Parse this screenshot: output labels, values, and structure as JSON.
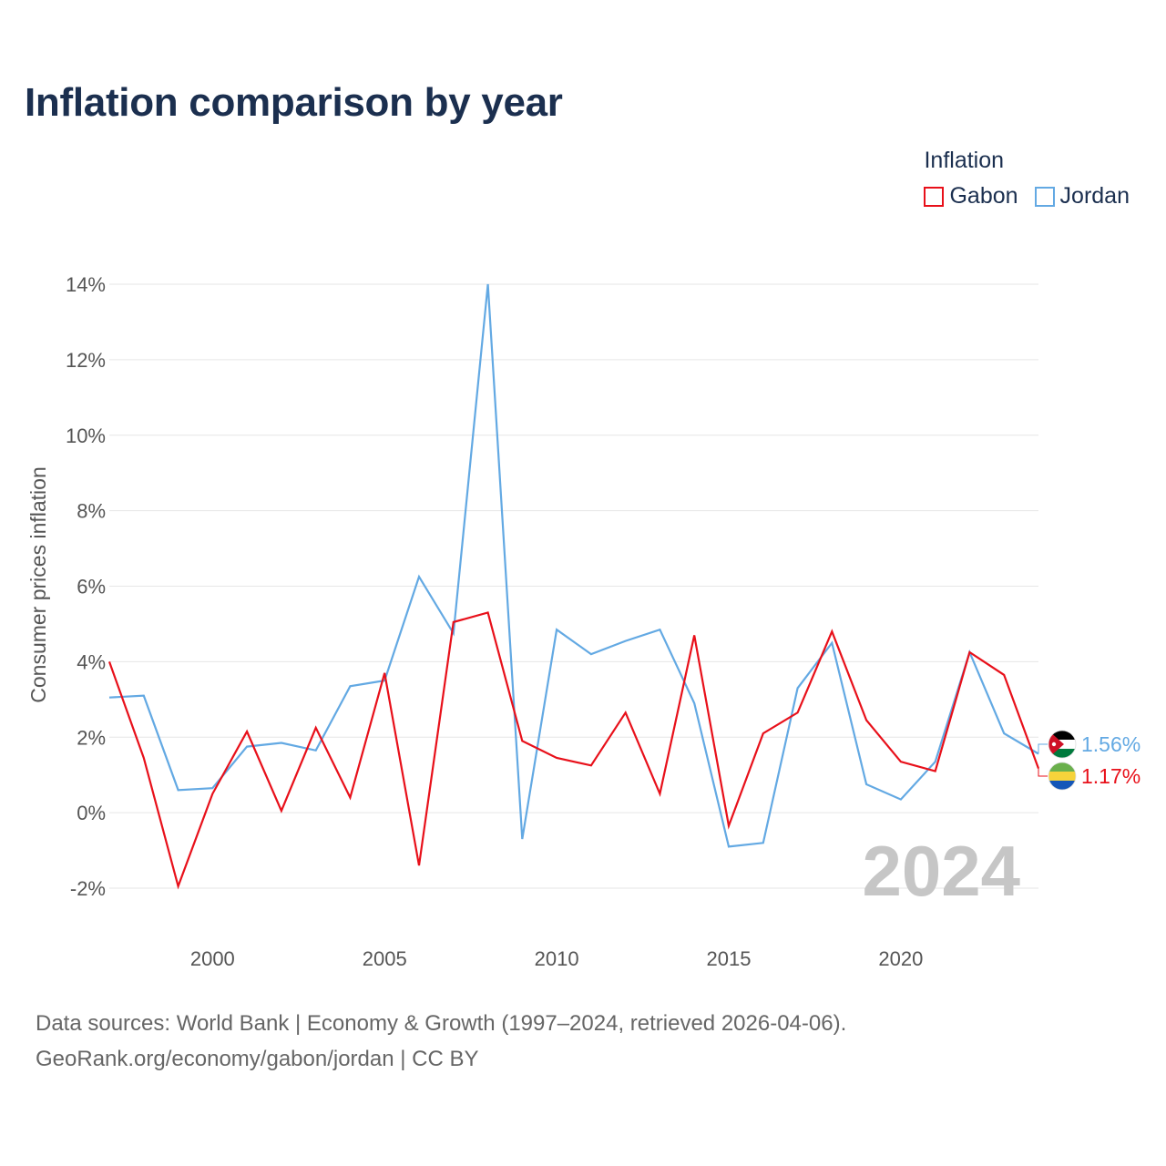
{
  "title": "Inflation comparison by year",
  "legend": {
    "title": "Inflation",
    "items": [
      {
        "label": "Gabon",
        "color": "#e8101a"
      },
      {
        "label": "Jordan",
        "color": "#63a9e3"
      }
    ]
  },
  "source": {
    "line1": "Data sources: World Bank | Economy & Growth (1997–2024, retrieved 2026-04-06).",
    "line2": "GeoRank.org/economy/gabon/jordan | CC BY"
  },
  "chart_data": {
    "type": "line",
    "title": "Inflation comparison by year",
    "ylabel": "Consumer prices inflation",
    "xlabel": "",
    "year_label": "2024",
    "x": [
      1997,
      1998,
      1999,
      2000,
      2001,
      2002,
      2003,
      2004,
      2005,
      2006,
      2007,
      2008,
      2009,
      2010,
      2011,
      2012,
      2013,
      2014,
      2015,
      2016,
      2017,
      2018,
      2019,
      2020,
      2021,
      2022,
      2023,
      2024
    ],
    "xlim": [
      1997,
      2024
    ],
    "ylim": [
      -2.8,
      14.5
    ],
    "xticks": [
      2000,
      2005,
      2010,
      2015,
      2020
    ],
    "yticks": [
      -2,
      0,
      2,
      4,
      6,
      8,
      10,
      12,
      14
    ],
    "ytick_labels": [
      "-2%",
      "0%",
      "2%",
      "4%",
      "6%",
      "8%",
      "10%",
      "12%",
      "14%"
    ],
    "series": [
      {
        "name": "Gabon",
        "color": "#e8101a",
        "end_label": "1.17%",
        "values": [
          4.0,
          1.45,
          -1.95,
          0.5,
          2.15,
          0.05,
          2.25,
          0.4,
          3.7,
          -1.4,
          5.05,
          5.3,
          1.9,
          1.45,
          1.25,
          2.65,
          0.5,
          4.7,
          -0.35,
          2.1,
          2.65,
          4.8,
          2.45,
          1.35,
          1.1,
          4.25,
          3.65,
          1.17
        ]
      },
      {
        "name": "Jordan",
        "color": "#63a9e3",
        "end_label": "1.56%",
        "values": [
          3.05,
          3.1,
          0.6,
          0.65,
          1.75,
          1.85,
          1.65,
          3.35,
          3.5,
          6.25,
          4.75,
          14.0,
          -0.7,
          4.85,
          4.2,
          4.55,
          4.85,
          2.9,
          -0.9,
          -0.8,
          3.3,
          4.5,
          0.75,
          0.35,
          1.35,
          4.25,
          2.1,
          1.56
        ]
      }
    ]
  }
}
